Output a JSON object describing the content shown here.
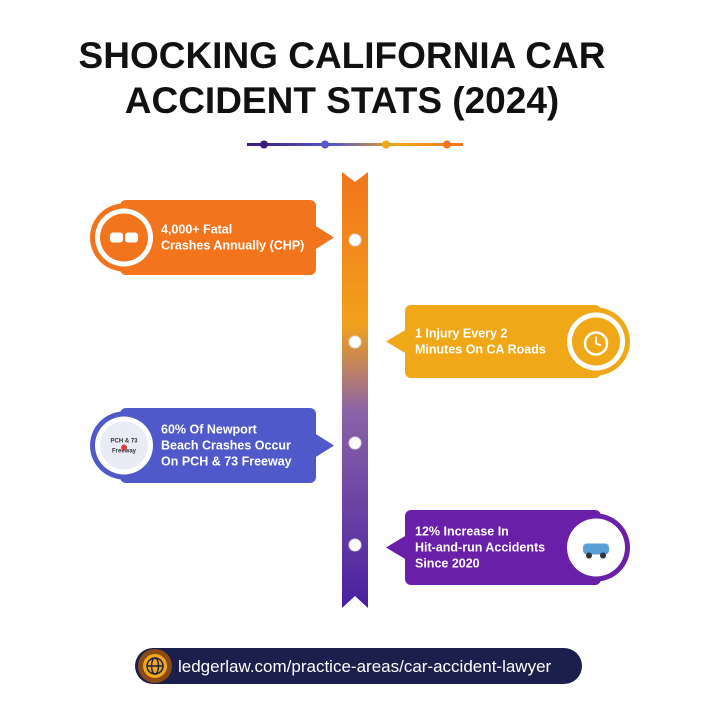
{
  "title": {
    "lines": [
      "SHOCKING CALIFORNIA CAR",
      "ACCIDENT STATS (2024)"
    ]
  },
  "stats": [
    {
      "lines": [
        "4,000+ Fatal",
        "Crashes Annually (CHP)"
      ]
    },
    {
      "lines": [
        "1 Injury Every 2",
        "Minutes On CA Roads"
      ]
    },
    {
      "lines": [
        "60% Of Newport",
        "Beach Crashes Occur",
        "On PCH & 73 Freeway"
      ],
      "icon_lines": [
        "PCH & 73",
        "Freeway"
      ]
    },
    {
      "lines": [
        "12% Increase In",
        "Hit-and-run Accidents",
        "Since 2020"
      ]
    }
  ],
  "footer": {
    "url": "ledgerlaw.com/practice-areas/car-accident-lawyer"
  }
}
